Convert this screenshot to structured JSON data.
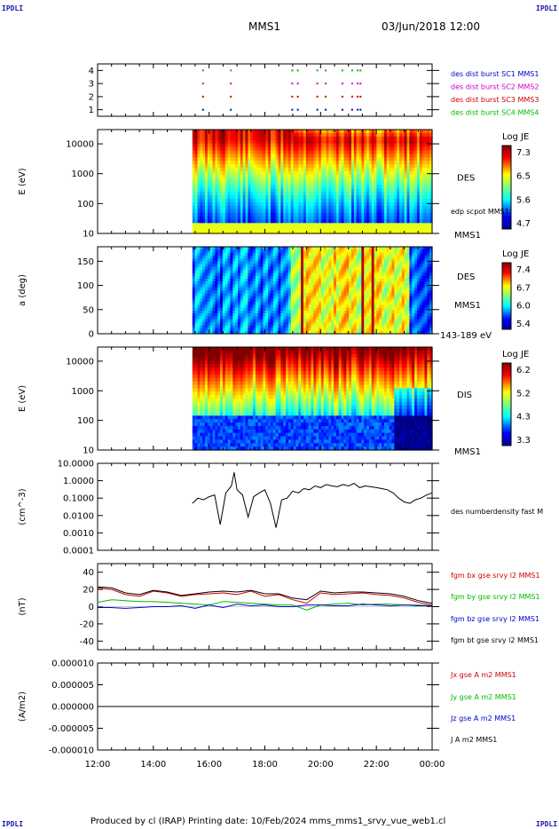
{
  "header": {
    "corner_left": "IPDLI",
    "corner_right": "IPDLI",
    "mission": "MMS1",
    "datetime": "03/Jun/2018 12:00",
    "corner_bottom_left": "IPDLI",
    "corner_bottom_right": "IPDLI"
  },
  "footer": {
    "text": "Produced by cl (IRAP)   Printing date: 10/Feb/2024   mms_mms1_srvy_vue_web1.cl"
  },
  "time_axis": {
    "ticks": [
      "12:00",
      "14:00",
      "16:00",
      "18:00",
      "20:00",
      "22:00",
      "00:00"
    ],
    "start_hour": 12,
    "end_hour": 24
  },
  "colors": {
    "blue": "#0000cc",
    "magenta": "#cc00cc",
    "red": "#cc0000",
    "green": "#00bb00",
    "black": "#000000"
  },
  "chart_data": [
    {
      "type": "scatter",
      "id": "burst",
      "ylim": [
        0.5,
        4.5
      ],
      "y_ticks": [
        "1",
        "2",
        "3",
        "4"
      ],
      "legend": [
        {
          "label": "des dist burst SC1 MMS1",
          "color": "#0000cc"
        },
        {
          "label": "des dist burst SC2 MMS2",
          "color": "#cc00cc"
        },
        {
          "label": "des dist burst SC3 MMS3",
          "color": "#cc0000"
        },
        {
          "label": "des dist burst SC4 MMS4",
          "color": "#00bb00"
        }
      ],
      "burst_times": [
        15.75,
        16.75,
        18.95,
        19.15,
        19.85,
        20.15,
        20.75,
        21.1,
        21.3,
        21.4
      ]
    },
    {
      "type": "heatmap",
      "id": "des_energy",
      "ylabel": "E (eV)",
      "yscale": "log",
      "ylim": [
        10,
        30000
      ],
      "y_ticks": [
        "10",
        "100",
        "1000",
        "10000"
      ],
      "data_start_hour": 15.4,
      "label": "DES",
      "instrument": "MMS1",
      "overlay_label": "edp scpot MMS1",
      "colorbar": {
        "title": "Log JE",
        "ticks": [
          "7.3",
          "6.5",
          "5.6",
          "4.7"
        ]
      }
    },
    {
      "type": "heatmap",
      "id": "des_pitch",
      "ylabel": "a (deg)",
      "ylim": [
        0,
        180
      ],
      "y_ticks": [
        "0",
        "50",
        "100",
        "150"
      ],
      "data_start_hour": 15.4,
      "label": "DES",
      "instrument": "MMS1",
      "energy_range": "143-189 eV",
      "colorbar": {
        "title": "Log JE",
        "ticks": [
          "7.4",
          "6.7",
          "6.0",
          "5.4"
        ]
      }
    },
    {
      "type": "heatmap",
      "id": "dis_energy",
      "ylabel": "E (eV)",
      "yscale": "log",
      "ylim": [
        10,
        30000
      ],
      "y_ticks": [
        "10",
        "100",
        "1000",
        "10000"
      ],
      "data_start_hour": 15.4,
      "label": "DIS",
      "instrument": "MMS1",
      "colorbar": {
        "title": "Log JE",
        "ticks": [
          "6.2",
          "5.2",
          "4.3",
          "3.3"
        ]
      }
    },
    {
      "type": "line",
      "id": "density",
      "ylabel": "(cm^-3)",
      "yscale": "log",
      "ylim": [
        0.0001,
        10
      ],
      "y_ticks": [
        "10.0000",
        "1.0000",
        "0.1000",
        "0.0100",
        "0.0010",
        "0.0001"
      ],
      "series": [
        {
          "name": "des numberdensity fast M",
          "color": "#000000",
          "x": [
            15.4,
            15.6,
            15.8,
            16.0,
            16.2,
            16.4,
            16.6,
            16.8,
            16.9,
            17.0,
            17.2,
            17.4,
            17.6,
            17.8,
            18.0,
            18.2,
            18.4,
            18.6,
            18.8,
            19.0,
            19.2,
            19.4,
            19.6,
            19.8,
            20.0,
            20.2,
            20.4,
            20.6,
            20.8,
            21.0,
            21.2,
            21.4,
            21.6,
            21.8,
            22.0,
            22.2,
            22.4,
            22.6,
            22.8,
            23.0,
            23.2,
            23.4,
            23.6,
            23.8,
            24.0
          ],
          "y": [
            0.05,
            0.1,
            0.08,
            0.12,
            0.15,
            0.003,
            0.2,
            0.5,
            3.0,
            0.3,
            0.15,
            0.008,
            0.12,
            0.2,
            0.3,
            0.05,
            0.002,
            0.08,
            0.1,
            0.25,
            0.2,
            0.35,
            0.3,
            0.5,
            0.4,
            0.6,
            0.5,
            0.45,
            0.6,
            0.5,
            0.7,
            0.4,
            0.5,
            0.45,
            0.4,
            0.35,
            0.3,
            0.2,
            0.1,
            0.06,
            0.05,
            0.08,
            0.1,
            0.15,
            0.2
          ]
        }
      ]
    },
    {
      "type": "line",
      "id": "fgm",
      "ylabel": "(nT)",
      "ylim": [
        -50,
        50
      ],
      "y_ticks": [
        "40",
        "20",
        "0",
        "-20",
        "-40"
      ],
      "series": [
        {
          "name": "fgm bx gse srvy l2 MMS1",
          "color": "#cc0000",
          "x": [
            12.0,
            12.5,
            13.0,
            13.5,
            14.0,
            14.5,
            15.0,
            15.5,
            16.0,
            16.5,
            17.0,
            17.5,
            18.0,
            18.5,
            19.0,
            19.5,
            20.0,
            20.5,
            21.0,
            21.5,
            22.0,
            22.5,
            23.0,
            23.5,
            24.0
          ],
          "y": [
            22,
            20,
            14,
            12,
            18,
            16,
            12,
            14,
            15,
            16,
            14,
            18,
            12,
            14,
            8,
            4,
            16,
            14,
            15,
            16,
            14,
            13,
            10,
            5,
            2
          ]
        },
        {
          "name": "fgm by gse srvy l2 MMS1",
          "color": "#00bb00",
          "x": [
            12.0,
            12.5,
            13.0,
            13.5,
            14.0,
            14.5,
            15.0,
            15.5,
            16.0,
            16.5,
            17.0,
            17.5,
            18.0,
            18.5,
            19.0,
            19.5,
            20.0,
            20.5,
            21.0,
            21.5,
            22.0,
            22.5,
            23.0,
            23.5,
            24.0
          ],
          "y": [
            5,
            8,
            7,
            6,
            6,
            5,
            4,
            3,
            2,
            6,
            5,
            4,
            3,
            2,
            2,
            -4,
            2,
            3,
            4,
            2,
            3,
            3,
            2,
            2,
            1
          ]
        },
        {
          "name": "fgm bz gse srvy l2 MMS1",
          "color": "#0000cc",
          "x": [
            12.0,
            12.5,
            13.0,
            13.5,
            14.0,
            14.5,
            15.0,
            15.5,
            16.0,
            16.5,
            17.0,
            17.5,
            18.0,
            18.5,
            19.0,
            19.5,
            20.0,
            20.5,
            21.0,
            21.5,
            22.0,
            22.5,
            23.0,
            23.5,
            24.0
          ],
          "y": [
            -1,
            -1,
            -2,
            -1,
            0,
            0,
            1,
            -2,
            2,
            -1,
            3,
            1,
            2,
            0,
            0,
            2,
            2,
            1,
            1,
            3,
            2,
            1,
            2,
            1,
            1
          ]
        },
        {
          "name": "fgm bt gse srvy l2 MMS1",
          "color": "#000000",
          "x": [
            12.0,
            12.5,
            13.0,
            13.5,
            14.0,
            14.5,
            15.0,
            15.5,
            16.0,
            16.5,
            17.0,
            17.5,
            18.0,
            18.5,
            19.0,
            19.5,
            20.0,
            20.5,
            21.0,
            21.5,
            22.0,
            22.5,
            23.0,
            23.5,
            24.0
          ],
          "y": [
            23,
            22,
            16,
            14,
            19,
            17,
            13,
            15,
            17,
            18,
            17,
            19,
            15,
            15,
            10,
            8,
            18,
            16,
            17,
            17,
            16,
            15,
            12,
            7,
            4
          ]
        }
      ]
    },
    {
      "type": "line",
      "id": "current",
      "ylabel": "(A/m2)",
      "ylim": [
        -1e-05,
        1e-05
      ],
      "y_ticks": [
        "0.000010",
        "0.000005",
        "0.000000",
        "-0.000005",
        "-0.000010"
      ],
      "series": [
        {
          "name": "Jx gse A m2 MMS1",
          "color": "#cc0000"
        },
        {
          "name": "Jy gse A m2 MMS1",
          "color": "#00bb00"
        },
        {
          "name": "Jz gse A m2 MMS1",
          "color": "#0000cc"
        },
        {
          "name": "J A m2 MMS1",
          "color": "#000000"
        }
      ],
      "x": [
        12,
        24
      ],
      "y": [
        0,
        0
      ]
    }
  ]
}
